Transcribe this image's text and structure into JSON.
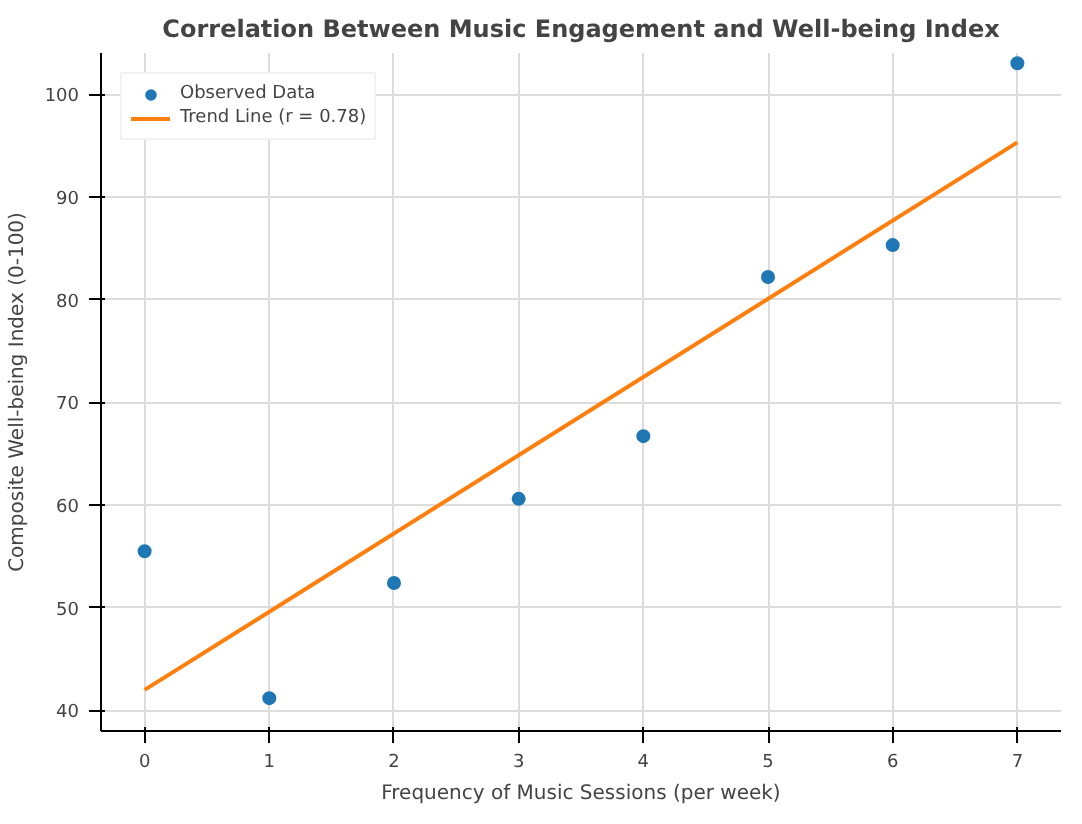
{
  "chart_data": {
    "type": "scatter",
    "title": "Correlation Between Music Engagement and Well-being Index",
    "xlabel": "Frequency of Music Sessions (per week)",
    "ylabel": "Composite Well-being Index (0-100)",
    "series": [
      {
        "name": "Observed Data",
        "color": "#1f77b4",
        "marker": "circle",
        "x": [
          0,
          1,
          2,
          3,
          4,
          5,
          6,
          7
        ],
        "values": [
          55.5,
          41.2,
          52.4,
          60.6,
          66.7,
          82.2,
          85.3,
          103
        ]
      },
      {
        "name": "Trend Line (r = 0.78)",
        "type": "line",
        "color": "#ff7f0e",
        "x": [
          0,
          7
        ],
        "values": [
          42,
          95.3
        ]
      }
    ],
    "xlim": [
      -0.35,
      7.35
    ],
    "ylim": [
      38,
      104
    ],
    "xticks": [
      0,
      1,
      2,
      3,
      4,
      5,
      6,
      7
    ],
    "yticks": [
      40,
      50,
      60,
      70,
      80,
      90,
      100
    ],
    "grid": true,
    "legend": "top left"
  }
}
